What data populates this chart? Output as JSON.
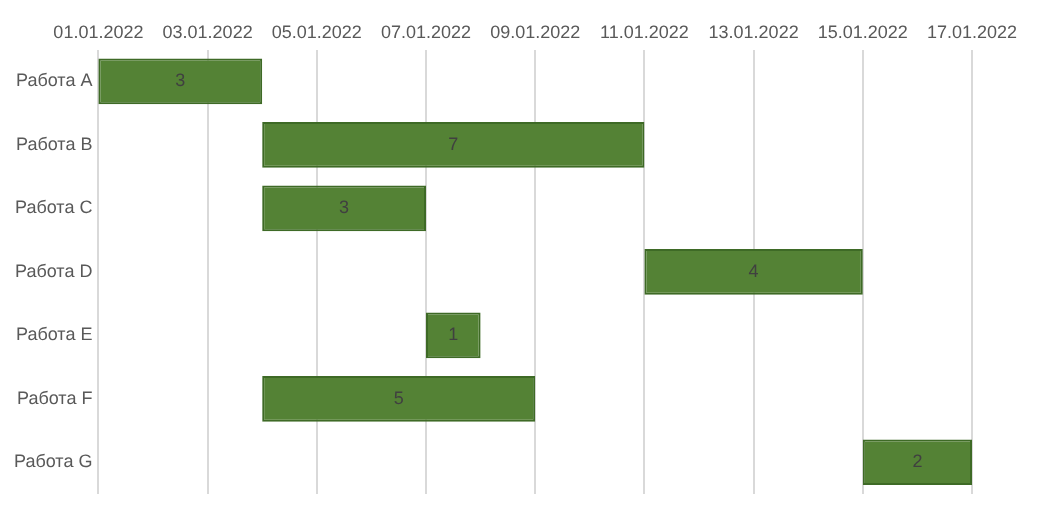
{
  "chart_data": {
    "type": "bar",
    "orientation": "horizontal",
    "categories": [
      "Работа A",
      "Работа B",
      "Работа C",
      "Работа D",
      "Работа E",
      "Работа F",
      "Работа G"
    ],
    "base": [
      18993,
      18996,
      18996,
      19003,
      18999,
      18996,
      19007
    ],
    "values": [
      3,
      7,
      3,
      4,
      1,
      5,
      2
    ],
    "color": "#548235",
    "data_labels": true,
    "xlim": [
      "2022-01-01",
      "2022-01-17"
    ],
    "xticks": [
      {
        "value": "2022-01-01",
        "label": "01.01.2022"
      },
      {
        "value": "2022-01-03",
        "label": "03.01.2022"
      },
      {
        "value": "2022-01-05",
        "label": "05.01.2022"
      },
      {
        "value": "2022-01-07",
        "label": "07.01.2022"
      },
      {
        "value": "2022-01-09",
        "label": "09.01.2022"
      },
      {
        "value": "2022-01-11",
        "label": "11.01.2022"
      },
      {
        "value": "2022-01-13",
        "label": "13.01.2022"
      },
      {
        "value": "2022-01-15",
        "label": "15.01.2022"
      },
      {
        "value": "2022-01-17",
        "label": "17.01.2022"
      }
    ],
    "grid": "x",
    "legend": false
  }
}
